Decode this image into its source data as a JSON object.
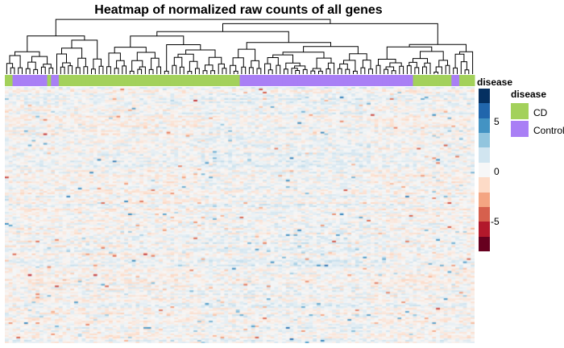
{
  "chart_data": {
    "type": "heatmap",
    "title": "Heatmap of normalized raw counts of all genes",
    "annotation_track_label": "disease",
    "annotation_groups": [
      {
        "group": "CD",
        "count": 2
      },
      {
        "group": "Control",
        "count": 9
      },
      {
        "group": "CD",
        "count": 1
      },
      {
        "group": "Control",
        "count": 2
      },
      {
        "group": "CD",
        "count": 47
      },
      {
        "group": "Control",
        "count": 45
      },
      {
        "group": "CD",
        "count": 10
      },
      {
        "group": "Control",
        "count": 2
      },
      {
        "group": "CD",
        "count": 4
      }
    ],
    "n_samples": 122,
    "n_genes": 160,
    "value_range": [
      -8,
      8
    ],
    "colorbar_ticks": [
      5,
      0,
      -5
    ],
    "colorbar_colors": [
      "#053061",
      "#2166ac",
      "#4393c3",
      "#92c5de",
      "#d1e5f0",
      "#f7f7f7",
      "#fddbc7",
      "#f4a582",
      "#d6604d",
      "#b2182b",
      "#67001f"
    ],
    "legend": {
      "title": "disease",
      "entries": [
        {
          "label": "CD",
          "color": "#a3d15b"
        },
        {
          "label": "Control",
          "color": "#a97ff5"
        }
      ]
    },
    "dendrogram": "hierarchical clustering of samples (top)"
  }
}
